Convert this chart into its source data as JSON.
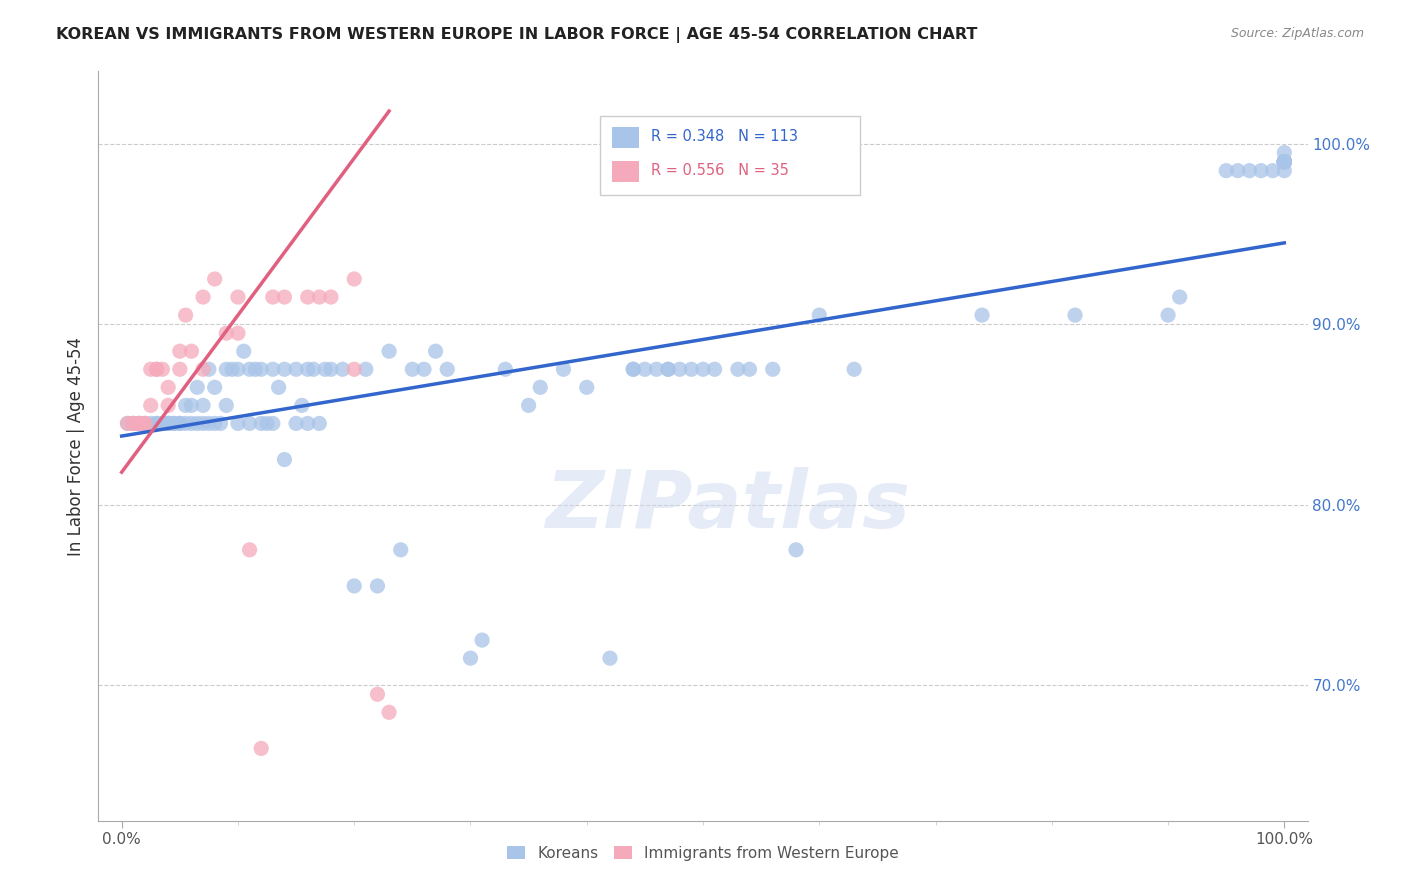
{
  "title": "KOREAN VS IMMIGRANTS FROM WESTERN EUROPE IN LABOR FORCE | AGE 45-54 CORRELATION CHART",
  "source": "Source: ZipAtlas.com",
  "ylabel": "In Labor Force | Age 45-54",
  "y_tick_labels_right": [
    "70.0%",
    "80.0%",
    "90.0%",
    "100.0%"
  ],
  "y_ticks_right": [
    0.7,
    0.8,
    0.9,
    1.0
  ],
  "xlim": [
    -0.02,
    1.02
  ],
  "ylim": [
    0.625,
    1.04
  ],
  "legend_blue_R": "R = 0.348",
  "legend_blue_N": "N = 113",
  "legend_pink_R": "R = 0.556",
  "legend_pink_N": "N = 35",
  "blue_color": "#a8c4e8",
  "pink_color": "#f5aabb",
  "blue_line_color": "#3366cc",
  "pink_line_color": "#e06080",
  "watermark": "ZIPatlas",
  "blue_scatter_x": [
    0.005,
    0.01,
    0.015,
    0.02,
    0.025,
    0.03,
    0.03,
    0.035,
    0.04,
    0.04,
    0.04,
    0.045,
    0.045,
    0.05,
    0.05,
    0.055,
    0.055,
    0.06,
    0.06,
    0.065,
    0.065,
    0.07,
    0.07,
    0.075,
    0.075,
    0.08,
    0.08,
    0.085,
    0.09,
    0.09,
    0.095,
    0.1,
    0.1,
    0.105,
    0.11,
    0.11,
    0.115,
    0.12,
    0.12,
    0.125,
    0.13,
    0.13,
    0.135,
    0.14,
    0.14,
    0.15,
    0.15,
    0.155,
    0.16,
    0.16,
    0.165,
    0.17,
    0.175,
    0.18,
    0.19,
    0.2,
    0.21,
    0.22,
    0.23,
    0.24,
    0.25,
    0.26,
    0.27,
    0.28,
    0.3,
    0.31,
    0.33,
    0.35,
    0.36,
    0.38,
    0.4,
    0.42,
    0.44,
    0.44,
    0.45,
    0.46,
    0.47,
    0.47,
    0.48,
    0.49,
    0.5,
    0.51,
    0.53,
    0.54,
    0.56,
    0.58,
    0.6,
    0.63,
    0.74,
    0.82,
    0.9,
    0.91,
    0.95,
    0.96,
    0.97,
    0.98,
    0.99,
    1.0,
    1.0,
    1.0,
    1.0,
    1.0,
    1.0,
    1.0,
    1.0,
    1.0,
    1.0,
    1.0,
    1.0,
    1.0
  ],
  "blue_scatter_y": [
    0.845,
    0.845,
    0.845,
    0.845,
    0.845,
    0.845,
    0.845,
    0.845,
    0.845,
    0.845,
    0.845,
    0.845,
    0.845,
    0.845,
    0.845,
    0.845,
    0.855,
    0.845,
    0.855,
    0.845,
    0.865,
    0.845,
    0.855,
    0.845,
    0.875,
    0.845,
    0.865,
    0.845,
    0.855,
    0.875,
    0.875,
    0.845,
    0.875,
    0.885,
    0.845,
    0.875,
    0.875,
    0.845,
    0.875,
    0.845,
    0.845,
    0.875,
    0.865,
    0.825,
    0.875,
    0.845,
    0.875,
    0.855,
    0.845,
    0.875,
    0.875,
    0.845,
    0.875,
    0.875,
    0.875,
    0.755,
    0.875,
    0.755,
    0.885,
    0.775,
    0.875,
    0.875,
    0.885,
    0.875,
    0.715,
    0.725,
    0.875,
    0.855,
    0.865,
    0.875,
    0.865,
    0.715,
    0.875,
    0.875,
    0.875,
    0.875,
    0.875,
    0.875,
    0.875,
    0.875,
    0.875,
    0.875,
    0.875,
    0.875,
    0.875,
    0.775,
    0.905,
    0.875,
    0.905,
    0.905,
    0.905,
    0.915,
    0.985,
    0.985,
    0.985,
    0.985,
    0.985,
    0.985,
    0.99,
    0.99,
    0.99,
    0.99,
    0.99,
    0.99,
    0.99,
    0.99,
    0.99,
    0.99,
    0.99,
    0.995
  ],
  "pink_scatter_x": [
    0.005,
    0.01,
    0.01,
    0.015,
    0.015,
    0.02,
    0.02,
    0.025,
    0.025,
    0.03,
    0.03,
    0.035,
    0.04,
    0.04,
    0.05,
    0.05,
    0.055,
    0.06,
    0.07,
    0.07,
    0.08,
    0.09,
    0.1,
    0.1,
    0.11,
    0.12,
    0.13,
    0.14,
    0.16,
    0.17,
    0.18,
    0.2,
    0.2,
    0.22,
    0.23
  ],
  "pink_scatter_y": [
    0.845,
    0.845,
    0.845,
    0.845,
    0.845,
    0.845,
    0.845,
    0.855,
    0.875,
    0.875,
    0.875,
    0.875,
    0.855,
    0.865,
    0.875,
    0.885,
    0.905,
    0.885,
    0.875,
    0.915,
    0.925,
    0.895,
    0.895,
    0.915,
    0.775,
    0.665,
    0.915,
    0.915,
    0.915,
    0.915,
    0.915,
    0.875,
    0.925,
    0.695,
    0.685
  ],
  "blue_line_x": [
    0.0,
    1.0
  ],
  "blue_line_y": [
    0.838,
    0.945
  ],
  "pink_line_x": [
    0.0,
    0.23
  ],
  "pink_line_y": [
    0.818,
    1.018
  ]
}
